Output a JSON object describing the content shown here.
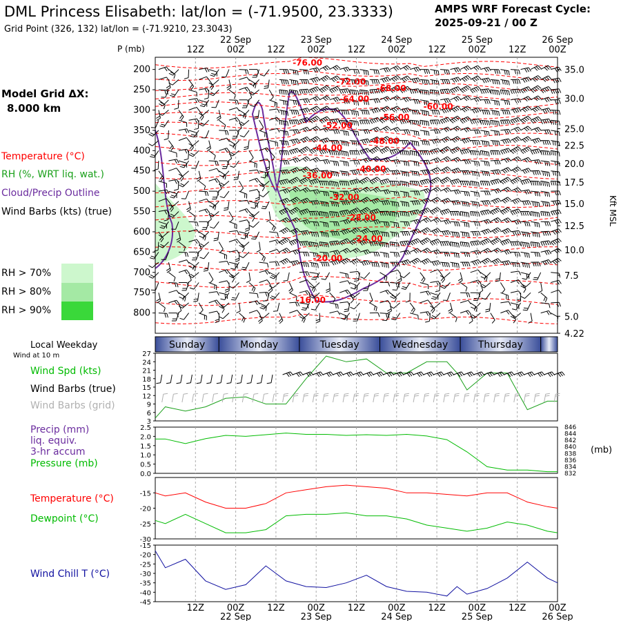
{
  "colors": {
    "temperature": "#ff0000",
    "rh": "#1aa01a",
    "cloud": "#6a2b9e",
    "wind": "#000000",
    "wind_grid": "#b0b0b0",
    "precip": "#6a2b9e",
    "pressure": "#00bb00",
    "dewpoint": "#00bb00",
    "windchill": "#1010a0",
    "rh70": "#cdf7cd",
    "rh80": "#a4e9a4",
    "rh90": "#3ad83a",
    "day_band": "#3a4e9a"
  },
  "header": {
    "title": "DML Princess Elisabeth:  lat/lon = (-71.9500, 23.3333)",
    "subtitle": "Grid Point (326, 132) lat/lon = (-71.9210, 23.3043)",
    "cycle_line1": "AMPS WRF Forecast Cycle:",
    "cycle_line2": "2025-09-21 / 00  Z"
  },
  "left_panel": {
    "model_grid_label": "Model Grid ΔX:",
    "model_grid_value": "8.000 km",
    "temperature_label": "Temperature (°C)",
    "rh_label": "RH (%, WRT liq. wat.)",
    "cloud_label": "Cloud/Precip Outline",
    "wind_label": "Wind Barbs (kts) (true)",
    "rh70": "RH > 70%",
    "rh80": "RH > 80%",
    "rh90": "RH > 90%",
    "local_weekday": "Local Weekday",
    "wind_at_10m": "Wind at 10 m",
    "wind_spd": "Wind Spd (kts)",
    "wind_barbs_true": "Wind Barbs (true)",
    "wind_barbs_grid": "Wind Barbs (grid)",
    "precip_l1": "Precip (mm)",
    "precip_l2": "liq. equiv.",
    "precip_l3": "3-hr accum",
    "pressure_label": "Pressure (mb)",
    "temp_label2": "Temperature (°C)",
    "dewpoint_label": "Dewpoint (°C)",
    "windchill_label": "Wind Chill T (°C)"
  },
  "chart_data": {
    "type": "line",
    "time_axis": {
      "hours_range": [
        0,
        120
      ],
      "tick_hours": [
        12,
        24,
        36,
        48,
        60,
        72,
        84,
        96,
        108,
        120
      ],
      "tick_labels": [
        "12Z",
        "00Z",
        "12Z",
        "00Z",
        "12Z",
        "00Z",
        "12Z",
        "00Z",
        "12Z",
        "00Z"
      ],
      "date_hours": [
        24,
        48,
        72,
        96,
        120
      ],
      "date_labels": [
        "22 Sep",
        "23 Sep",
        "24 Sep",
        "25 Sep",
        "26 Sep"
      ]
    },
    "cross_section": {
      "pressure_label": "P (mb)",
      "pressure_ticks": [
        200,
        250,
        300,
        350,
        400,
        450,
        500,
        550,
        600,
        650,
        700,
        750,
        800
      ],
      "right_axis_label": "Kft MSL",
      "right_ticks": [
        {
          "label": "35.0",
          "p": 200
        },
        {
          "label": "30.0",
          "p": 271
        },
        {
          "label": "25.0",
          "p": 346
        },
        {
          "label": "22.5",
          "p": 387
        },
        {
          "label": "20.0",
          "p": 432
        },
        {
          "label": "17.5",
          "p": 478
        },
        {
          "label": "15.0",
          "p": 530
        },
        {
          "label": "12.5",
          "p": 585
        },
        {
          "label": "10.0",
          "p": 644
        },
        {
          "label": "7.5",
          "p": 707
        },
        {
          "label": "5.0",
          "p": 808
        },
        {
          "label": "4.22",
          "p": 850
        }
      ],
      "temperature_labels": [
        {
          "text": "-76.00",
          "hour": 41,
          "p": 190
        },
        {
          "text": "-72.00",
          "hour": 54,
          "p": 237
        },
        {
          "text": "-68.00",
          "hour": 66,
          "p": 253
        },
        {
          "text": "-64.00",
          "hour": 55,
          "p": 280
        },
        {
          "text": "-60.00",
          "hour": 80,
          "p": 298
        },
        {
          "text": "-56.00",
          "hour": 67,
          "p": 325
        },
        {
          "text": "-52.00",
          "hour": 50,
          "p": 345
        },
        {
          "text": "-48.00",
          "hour": 64,
          "p": 383
        },
        {
          "text": "-44.00",
          "hour": 47,
          "p": 400
        },
        {
          "text": "-40.00",
          "hour": 60,
          "p": 452
        },
        {
          "text": "-36.00",
          "hour": 44,
          "p": 468
        },
        {
          "text": "-32.00",
          "hour": 52,
          "p": 522
        },
        {
          "text": "-28.00",
          "hour": 57,
          "p": 572
        },
        {
          "text": "-24.00",
          "hour": 59,
          "p": 624
        },
        {
          "text": "-20.00",
          "hour": 47,
          "p": 672
        },
        {
          "text": "-16.00",
          "hour": 42,
          "p": 775
        }
      ]
    },
    "weekdays": [
      "Sunday",
      "Monday",
      "Tuesday",
      "Wednesday",
      "Thursday"
    ],
    "weekday_boundary_hours": [
      0,
      19,
      43,
      67,
      91,
      115,
      120
    ],
    "panels": [
      {
        "name": "wind",
        "ylim": [
          3,
          27
        ],
        "yticks": [
          3,
          6,
          9,
          12,
          15,
          18,
          21,
          24,
          27
        ],
        "series": [
          {
            "name": "Wind Spd (kts)",
            "x": [
              0,
              3,
              9,
              15,
              21,
              27,
              33,
              39,
              45,
              51,
              57,
              63,
              69,
              75,
              81,
              87,
              90,
              93,
              99,
              105,
              111,
              117,
              120
            ],
            "values": [
              4,
              8,
              6.5,
              8,
              11,
              11.5,
              9,
              9,
              18,
              26,
              24,
              25,
              20,
              20,
              24,
              24,
              20,
              14,
              20,
              20,
              7,
              10,
              10
            ]
          }
        ]
      },
      {
        "name": "precip_pressure",
        "ylim": [
          0,
          2.5
        ],
        "yticks": [
          0.0,
          0.5,
          1.0,
          1.5,
          2.0,
          2.5
        ],
        "right_ticks": [
          832,
          834,
          836,
          838,
          840,
          842,
          844,
          846
        ],
        "right_label": "(mb)",
        "series": [
          {
            "name": "Pressure (mb)",
            "x": [
              0,
              3,
              9,
              15,
              21,
              27,
              33,
              39,
              45,
              51,
              57,
              63,
              69,
              75,
              81,
              87,
              93,
              99,
              105,
              111,
              117,
              120
            ],
            "values": [
              842.4,
              842.4,
              841.0,
              842.5,
              843.5,
              843.2,
              843.7,
              844.2,
              843.8,
              843.8,
              843.5,
              843.7,
              843.5,
              843.8,
              843.3,
              842.2,
              838.5,
              834.0,
              833.0,
              833.0,
              832.5,
              832.5
            ]
          }
        ]
      },
      {
        "name": "temperature_dewpoint",
        "ylim": [
          -30,
          -10
        ],
        "yticks": [
          -30,
          -25,
          -20,
          -15
        ],
        "series": [
          {
            "name": "Temperature (°C)",
            "x": [
              0,
              3,
              9,
              15,
              21,
              27,
              33,
              39,
              45,
              51,
              57,
              63,
              69,
              75,
              81,
              87,
              93,
              99,
              105,
              111,
              117,
              120
            ],
            "values": [
              -15,
              -16,
              -15,
              -18,
              -20,
              -20,
              -18.5,
              -15,
              -14,
              -13,
              -12.5,
              -13,
              -13.5,
              -15,
              -15,
              -15.5,
              -16,
              -15,
              -15,
              -18,
              -19.5,
              -20
            ]
          },
          {
            "name": "Dewpoint (°C)",
            "x": [
              0,
              3,
              9,
              15,
              21,
              27,
              33,
              39,
              45,
              51,
              57,
              63,
              69,
              75,
              81,
              87,
              93,
              99,
              105,
              111,
              117,
              120
            ],
            "values": [
              -24,
              -25,
              -22,
              -25,
              -28,
              -28,
              -27,
              -22.5,
              -22,
              -22,
              -21.5,
              -22.5,
              -22.5,
              -23.5,
              -25.5,
              -26.5,
              -27.5,
              -26.5,
              -24.5,
              -25.5,
              -27.5,
              -28
            ]
          }
        ]
      },
      {
        "name": "windchill",
        "ylim": [
          -45,
          -15
        ],
        "yticks": [
          -45,
          -40,
          -35,
          -30,
          -25,
          -20,
          -15
        ],
        "series": [
          {
            "name": "Wind Chill T (°C)",
            "x": [
              0,
              3,
              9,
              15,
              21,
              27,
              33,
              39,
              45,
              51,
              57,
              63,
              69,
              75,
              81,
              87,
              90,
              93,
              99,
              105,
              111,
              117,
              120
            ],
            "values": [
              -18,
              -27,
              -22.5,
              -34,
              -38.5,
              -36,
              -26,
              -34,
              -37,
              -37.5,
              -35,
              -31,
              -37,
              -39.5,
              -40,
              -42,
              -37,
              -41,
              -38,
              -32.5,
              -24,
              -32.5,
              -35
            ]
          }
        ]
      }
    ]
  }
}
